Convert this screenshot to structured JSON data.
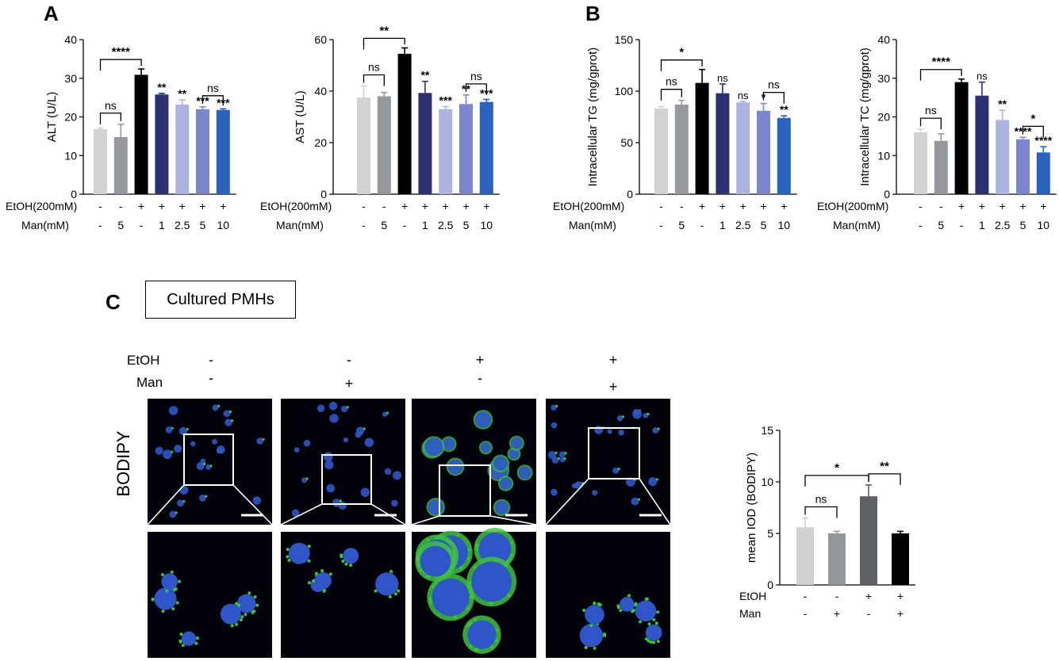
{
  "panels": [
    {
      "letter": "A"
    },
    {
      "letter": "B"
    },
    {
      "letter": "C"
    }
  ],
  "boxed_title": "Cultured PMHs",
  "stain_label": "BODIPY",
  "header_rows": {
    "etoh_label": "EtOH",
    "man_label": "Man",
    "etoh": [
      "-",
      "-",
      "+",
      "+"
    ],
    "man": [
      "-",
      "+",
      "-",
      "+"
    ]
  },
  "colors": {
    "c1": "#d0d2d3",
    "c2": "#95989c",
    "c3": "#000000",
    "c4": "#2b3171",
    "c5": "#adb3e0",
    "c6": "#7b86cc",
    "c7": "#2a62bf",
    "micro_bg": "#02030a",
    "nucleus": "#2f56c8",
    "lipid": "#3ec23e"
  },
  "chart_data": [
    {
      "type": "bar",
      "ylabel": "ALT (U/L)",
      "ylim": [
        0,
        40
      ],
      "yticks": [
        0,
        10,
        20,
        30,
        40
      ],
      "categories": [
        "1",
        "2",
        "3",
        "4",
        "5",
        "6",
        "7"
      ],
      "values": [
        16.8,
        14.8,
        30.9,
        25.8,
        23.2,
        22.0,
        21.8
      ],
      "errors": [
        0.3,
        3.3,
        1.5,
        0.3,
        1.2,
        0.6,
        0.3
      ],
      "stars": [
        "",
        "",
        "",
        "**",
        "**",
        "***",
        "***"
      ],
      "brackets": [
        {
          "from": 0,
          "to": 1,
          "label": "ns"
        },
        {
          "from": 0,
          "to": 2,
          "label": "****"
        },
        {
          "from": 5,
          "to": 6,
          "label": "ns"
        }
      ],
      "row1_label": "EtOH(200mM)",
      "row1": [
        "-",
        "-",
        "+",
        "+",
        "+",
        "+",
        "+"
      ],
      "row2_label": "Man(mM)",
      "row2": [
        "-",
        "5",
        "-",
        "1",
        "2.5",
        "5",
        "10"
      ]
    },
    {
      "type": "bar",
      "ylabel": "AST (U/L)",
      "ylim": [
        0,
        60
      ],
      "yticks": [
        0,
        20,
        40,
        60
      ],
      "categories": [
        "1",
        "2",
        "3",
        "4",
        "5",
        "6",
        "7"
      ],
      "values": [
        37.5,
        38.0,
        54.5,
        39.3,
        33.0,
        35.0,
        35.8
      ],
      "errors": [
        4.5,
        1.5,
        2.3,
        4.5,
        1.0,
        3.5,
        1.0
      ],
      "stars": [
        "",
        "",
        "",
        "**",
        "***",
        "**",
        "***"
      ],
      "brackets": [
        {
          "from": 0,
          "to": 1,
          "label": "ns"
        },
        {
          "from": 0,
          "to": 2,
          "label": "**"
        },
        {
          "from": 5,
          "to": 6,
          "label": "ns"
        }
      ],
      "row1_label": "EtOH(200mM)",
      "row1": [
        "-",
        "-",
        "+",
        "+",
        "+",
        "+",
        "+"
      ],
      "row2_label": "Man(mM)",
      "row2": [
        "-",
        "5",
        "-",
        "1",
        "2.5",
        "5",
        "10"
      ]
    },
    {
      "type": "bar",
      "ylabel": "Intracellular TG (mg/gprot)",
      "ylim": [
        0,
        150
      ],
      "yticks": [
        0,
        50,
        100,
        150
      ],
      "categories": [
        "1",
        "2",
        "3",
        "4",
        "5",
        "6",
        "7"
      ],
      "values": [
        83,
        87,
        108,
        98,
        89,
        81,
        74
      ],
      "errors": [
        2,
        4,
        13,
        9,
        1,
        7,
        2
      ],
      "stars": [
        "",
        "",
        "",
        "ns",
        "ns",
        "*",
        "**"
      ],
      "brackets": [
        {
          "from": 0,
          "to": 1,
          "label": "ns"
        },
        {
          "from": 0,
          "to": 2,
          "label": "*"
        },
        {
          "from": 5,
          "to": 6,
          "label": "ns"
        }
      ],
      "row1_label": "EtOH(200mM)",
      "row1": [
        "-",
        "-",
        "+",
        "+",
        "+",
        "+",
        "+"
      ],
      "row2_label": "Man(mM)",
      "row2": [
        "-",
        "5",
        "-",
        "1",
        "2.5",
        "5",
        "10"
      ]
    },
    {
      "type": "bar",
      "ylabel": "Intracellular TC (mg/gprot)",
      "ylim": [
        0,
        40
      ],
      "yticks": [
        0,
        10,
        20,
        30,
        40
      ],
      "categories": [
        "1",
        "2",
        "3",
        "4",
        "5",
        "6",
        "7"
      ],
      "values": [
        16.0,
        13.8,
        29.0,
        25.5,
        19.2,
        14.2,
        10.8
      ],
      "errors": [
        0.8,
        1.8,
        0.8,
        3.5,
        2.5,
        0.5,
        1.5
      ],
      "stars": [
        "",
        "",
        "",
        "ns",
        "**",
        "****",
        "****"
      ],
      "brackets": [
        {
          "from": 0,
          "to": 1,
          "label": "ns"
        },
        {
          "from": 0,
          "to": 2,
          "label": "****"
        },
        {
          "from": 5,
          "to": 6,
          "label": "*"
        }
      ],
      "row1_label": "EtOH(200mM)",
      "row1": [
        "-",
        "-",
        "+",
        "+",
        "+",
        "+",
        "+"
      ],
      "row2_label": "Man(mM)",
      "row2": [
        "-",
        "5",
        "-",
        "1",
        "2.5",
        "5",
        "10"
      ]
    },
    {
      "type": "bar",
      "ylabel": "mean IOD (BODIPY)",
      "ylim": [
        0,
        15
      ],
      "yticks": [
        0,
        5,
        10,
        15
      ],
      "categories": [
        "1",
        "2",
        "3",
        "4"
      ],
      "values": [
        5.6,
        5.0,
        8.6,
        5.0
      ],
      "errors": [
        0.9,
        0.2,
        1.1,
        0.2
      ],
      "stars": [
        "",
        "",
        "",
        ""
      ],
      "brackets": [
        {
          "from": 0,
          "to": 1,
          "label": "ns"
        },
        {
          "from": 0,
          "to": 2,
          "label": "*"
        },
        {
          "from": 2,
          "to": 3,
          "label": "**"
        }
      ],
      "row1_label": "EtOH",
      "row1": [
        "-",
        "-",
        "+",
        "+"
      ],
      "row2_label": "Man",
      "row2": [
        "-",
        "+",
        "-",
        "+"
      ]
    }
  ]
}
